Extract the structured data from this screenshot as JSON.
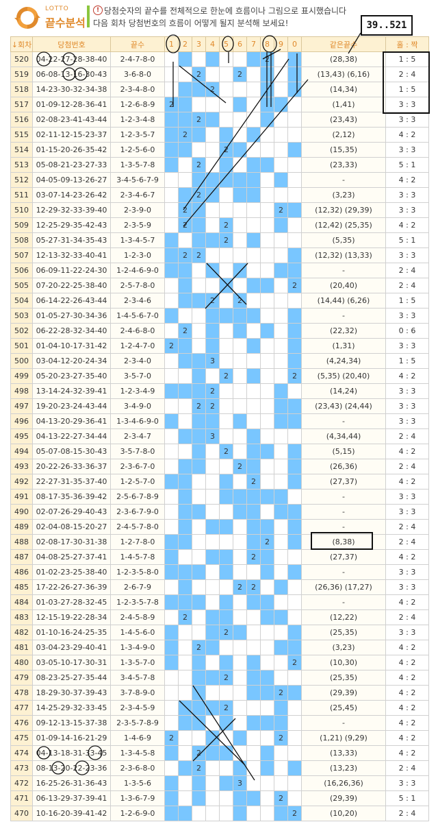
{
  "header": {
    "logo_small": "LOTTO",
    "logo_main": "끝수분석",
    "notice_icon": "exclamation-icon",
    "description_line1": "당첨숫자의 끝수를 전체적으로 한눈에 흐름이나 그림으로 표시했습니다",
    "description_line2": "다음 회차 당첨번호의 흐름이 어떻게 될지 분석해 보세요!",
    "annotation_note": "39..521",
    "accent_color": "#e08a2c",
    "cell_color": "#79c6ff"
  },
  "table": {
    "headers": {
      "draw": "↓회차",
      "numbers": "당첨번호",
      "digits": "끝수",
      "cols": [
        "1",
        "2",
        "3",
        "4",
        "5",
        "6",
        "7",
        "8",
        "9",
        "0"
      ],
      "same": "같은끝수",
      "ratio": "홀 : 짝"
    },
    "rows": [
      {
        "draw": "520",
        "numbers": "04-22-27-28-38-40",
        "digits": "2-4-7-8-0",
        "same": "(28,38)",
        "ratio": "1 : 5"
      },
      {
        "draw": "519",
        "numbers": "06-08-13-16-30-43",
        "digits": "3-6-8-0",
        "same": "(13,43) (6,16)",
        "ratio": "2 : 4"
      },
      {
        "draw": "518",
        "numbers": "14-23-30-32-34-38",
        "digits": "2-3-4-8-0",
        "same": "(14,34)",
        "ratio": "1 : 5"
      },
      {
        "draw": "517",
        "numbers": "01-09-12-28-36-41",
        "digits": "1-2-6-8-9",
        "same": "(1,41)",
        "ratio": "3 : 3"
      },
      {
        "draw": "516",
        "numbers": "02-08-23-41-43-44",
        "digits": "1-2-3-4-8",
        "same": "(23,43)",
        "ratio": "3 : 3"
      },
      {
        "draw": "515",
        "numbers": "02-11-12-15-23-37",
        "digits": "1-2-3-5-7",
        "same": "(2,12)",
        "ratio": "4 : 2"
      },
      {
        "draw": "514",
        "numbers": "01-15-20-26-35-42",
        "digits": "1-2-5-6-0",
        "same": "(15,35)",
        "ratio": "3 : 3"
      },
      {
        "draw": "513",
        "numbers": "05-08-21-23-27-33",
        "digits": "1-3-5-7-8",
        "same": "(23,33)",
        "ratio": "5 : 1"
      },
      {
        "draw": "512",
        "numbers": "04-05-09-13-26-27",
        "digits": "3-4-5-6-7-9",
        "same": "-",
        "ratio": "4 : 2"
      },
      {
        "draw": "511",
        "numbers": "03-07-14-23-26-42",
        "digits": "2-3-4-6-7",
        "same": "(3,23)",
        "ratio": "3 : 3"
      },
      {
        "draw": "510",
        "numbers": "12-29-32-33-39-40",
        "digits": "2-3-9-0",
        "same": "(12,32) (29,39)",
        "ratio": "3 : 3"
      },
      {
        "draw": "509",
        "numbers": "12-25-29-35-42-43",
        "digits": "2-3-5-9",
        "same": "(12,42) (25,35)",
        "ratio": "4 : 2"
      },
      {
        "draw": "508",
        "numbers": "05-27-31-34-35-43",
        "digits": "1-3-4-5-7",
        "same": "(5,35)",
        "ratio": "5 : 1"
      },
      {
        "draw": "507",
        "numbers": "12-13-32-33-40-41",
        "digits": "1-2-3-0",
        "same": "(12,32) (13,33)",
        "ratio": "3 : 3"
      },
      {
        "draw": "506",
        "numbers": "06-09-11-22-24-30",
        "digits": "1-2-4-6-9-0",
        "same": "-",
        "ratio": "2 : 4"
      },
      {
        "draw": "505",
        "numbers": "07-20-22-25-38-40",
        "digits": "2-5-7-8-0",
        "same": "(20,40)",
        "ratio": "2 : 4"
      },
      {
        "draw": "504",
        "numbers": "06-14-22-26-43-44",
        "digits": "2-3-4-6",
        "same": "(14,44) (6,26)",
        "ratio": "1 : 5"
      },
      {
        "draw": "503",
        "numbers": "01-05-27-30-34-36",
        "digits": "1-4-5-6-7-0",
        "same": "-",
        "ratio": "3 : 3"
      },
      {
        "draw": "502",
        "numbers": "06-22-28-32-34-40",
        "digits": "2-4-6-8-0",
        "same": "(22,32)",
        "ratio": "0 : 6"
      },
      {
        "draw": "501",
        "numbers": "01-04-10-17-31-42",
        "digits": "1-2-4-7-0",
        "same": "(1,31)",
        "ratio": "3 : 3"
      },
      {
        "draw": "500",
        "numbers": "03-04-12-20-24-34",
        "digits": "2-3-4-0",
        "same": "(4,24,34)",
        "ratio": "1 : 5"
      },
      {
        "draw": "499",
        "numbers": "05-20-23-27-35-40",
        "digits": "3-5-7-0",
        "same": "(5,35) (20,40)",
        "ratio": "4 : 2"
      },
      {
        "draw": "498",
        "numbers": "13-14-24-32-39-41",
        "digits": "1-2-3-4-9",
        "same": "(14,24)",
        "ratio": "3 : 3"
      },
      {
        "draw": "497",
        "numbers": "19-20-23-24-43-44",
        "digits": "3-4-9-0",
        "same": "(23,43) (24,44)",
        "ratio": "3 : 3"
      },
      {
        "draw": "496",
        "numbers": "04-13-20-29-36-41",
        "digits": "1-3-4-6-9-0",
        "same": "-",
        "ratio": "3 : 3"
      },
      {
        "draw": "495",
        "numbers": "04-13-22-27-34-44",
        "digits": "2-3-4-7",
        "same": "(4,34,44)",
        "ratio": "2 : 4"
      },
      {
        "draw": "494",
        "numbers": "05-07-08-15-30-43",
        "digits": "3-5-7-8-0",
        "same": "(5,15)",
        "ratio": "4 : 2"
      },
      {
        "draw": "493",
        "numbers": "20-22-26-33-36-37",
        "digits": "2-3-6-7-0",
        "same": "(26,36)",
        "ratio": "2 : 4"
      },
      {
        "draw": "492",
        "numbers": "22-27-31-35-37-40",
        "digits": "1-2-5-7-0",
        "same": "(27,37)",
        "ratio": "4 : 2"
      },
      {
        "draw": "491",
        "numbers": "08-17-35-36-39-42",
        "digits": "2-5-6-7-8-9",
        "same": "-",
        "ratio": "3 : 3"
      },
      {
        "draw": "490",
        "numbers": "02-07-26-29-40-43",
        "digits": "2-3-6-7-9-0",
        "same": "-",
        "ratio": "3 : 3"
      },
      {
        "draw": "489",
        "numbers": "02-04-08-15-20-27",
        "digits": "2-4-5-7-8-0",
        "same": "-",
        "ratio": "2 : 4"
      },
      {
        "draw": "488",
        "numbers": "02-08-17-30-31-38",
        "digits": "1-2-7-8-0",
        "same": "(8,38)",
        "ratio": "2 : 4"
      },
      {
        "draw": "487",
        "numbers": "04-08-25-27-37-41",
        "digits": "1-4-5-7-8",
        "same": "(27,37)",
        "ratio": "4 : 2"
      },
      {
        "draw": "486",
        "numbers": "01-02-23-25-38-40",
        "digits": "1-2-3-5-8-0",
        "same": "-",
        "ratio": "3 : 3"
      },
      {
        "draw": "485",
        "numbers": "17-22-26-27-36-39",
        "digits": "2-6-7-9",
        "same": "(26,36) (17,27)",
        "ratio": "3 : 3"
      },
      {
        "draw": "484",
        "numbers": "01-03-27-28-32-45",
        "digits": "1-2-3-5-7-8",
        "same": "-",
        "ratio": "4 : 2"
      },
      {
        "draw": "483",
        "numbers": "12-15-19-22-28-34",
        "digits": "2-4-5-8-9",
        "same": "(12,22)",
        "ratio": "2 : 4"
      },
      {
        "draw": "482",
        "numbers": "01-10-16-24-25-35",
        "digits": "1-4-5-6-0",
        "same": "(25,35)",
        "ratio": "3 : 3"
      },
      {
        "draw": "481",
        "numbers": "03-04-23-29-40-41",
        "digits": "1-3-4-9-0",
        "same": "(3,23)",
        "ratio": "4 : 2"
      },
      {
        "draw": "480",
        "numbers": "03-05-10-17-30-31",
        "digits": "1-3-5-7-0",
        "same": "(10,30)",
        "ratio": "4 : 2"
      },
      {
        "draw": "479",
        "numbers": "08-23-25-27-35-44",
        "digits": "3-4-5-7-8",
        "same": "(25,35)",
        "ratio": "4 : 2"
      },
      {
        "draw": "478",
        "numbers": "18-29-30-37-39-43",
        "digits": "3-7-8-9-0",
        "same": "(29,39)",
        "ratio": "4 : 2"
      },
      {
        "draw": "477",
        "numbers": "14-25-29-32-33-45",
        "digits": "2-3-4-5-9",
        "same": "(25,45)",
        "ratio": "4 : 2"
      },
      {
        "draw": "476",
        "numbers": "09-12-13-15-37-38",
        "digits": "2-3-5-7-8-9",
        "same": "-",
        "ratio": "4 : 2"
      },
      {
        "draw": "475",
        "numbers": "01-09-14-16-21-29",
        "digits": "1-4-6-9",
        "same": "(1,21) (9,29)",
        "ratio": "4 : 2"
      },
      {
        "draw": "474",
        "numbers": "04-13-18-31-33-45",
        "digits": "1-3-4-5-8",
        "same": "(13,33)",
        "ratio": "4 : 2"
      },
      {
        "draw": "473",
        "numbers": "08-13-20-22-23-36",
        "digits": "2-3-6-8-0",
        "same": "(13,23)",
        "ratio": "2 : 4"
      },
      {
        "draw": "472",
        "numbers": "16-25-26-31-36-43",
        "digits": "1-3-5-6",
        "same": "(16,26,36)",
        "ratio": "3 : 3"
      },
      {
        "draw": "471",
        "numbers": "06-13-29-37-39-41",
        "digits": "1-3-6-7-9",
        "same": "(29,39)",
        "ratio": "5 : 1"
      },
      {
        "draw": "470",
        "numbers": "10-16-20-39-41-42",
        "digits": "1-2-6-9-0",
        "same": "(10,20)",
        "ratio": "2 : 4"
      }
    ]
  }
}
